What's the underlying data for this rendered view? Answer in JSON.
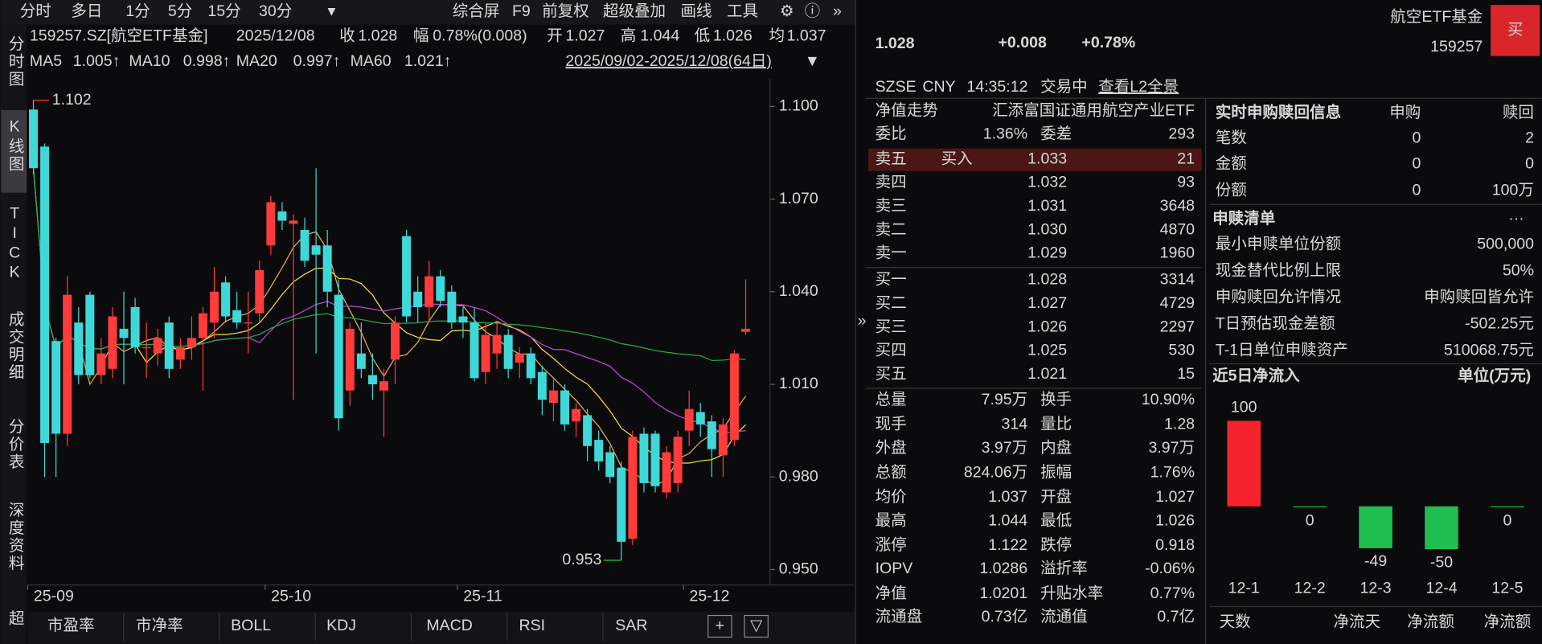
{
  "toolbar": {
    "periods": [
      "分时",
      "多日",
      "1分",
      "5分",
      "15分",
      "30分"
    ],
    "tools": [
      "综合屏",
      "F9",
      "前复权",
      "超级叠加",
      "画线",
      "工具"
    ]
  },
  "side_tabs": [
    "分时图",
    "K线图",
    "TICK",
    "成交明细",
    "分价表",
    "深度资料",
    "超"
  ],
  "chart_data": [
    {
      "type": "candlestick",
      "symbol": "159257.SZ[航空ETF基金]",
      "date": "2025/12/08",
      "quote_fields": [
        [
          "收",
          "1.028"
        ],
        [
          "幅",
          "0.78%(0.008)"
        ],
        [
          "开",
          "1.027"
        ],
        [
          "高",
          "1.044"
        ],
        [
          "低",
          "1.026"
        ],
        [
          "均",
          "1.037"
        ]
      ],
      "ma": [
        {
          "name": "MA5",
          "value_label": "1.005↑",
          "color": "#f0b050"
        },
        {
          "name": "MA10",
          "value_label": "0.998↑",
          "color": "#ffe033"
        },
        {
          "name": "MA20",
          "value_label": "0.997↑",
          "color": "#c04ad8"
        },
        {
          "name": "MA60",
          "value_label": "1.021↑",
          "color": "#2aa84a"
        }
      ],
      "range_label": "2025/09/02-2025/12/08(64日)",
      "categories": [
        "25-09",
        null,
        null,
        null,
        null,
        null,
        null,
        null,
        null,
        null,
        null,
        null,
        null,
        null,
        null,
        null,
        null,
        null,
        null,
        null,
        null,
        "25-10",
        null,
        null,
        null,
        null,
        null,
        null,
        null,
        null,
        null,
        null,
        null,
        null,
        null,
        null,
        null,
        null,
        "25-11",
        null,
        null,
        null,
        null,
        null,
        null,
        null,
        null,
        null,
        null,
        null,
        null,
        null,
        null,
        null,
        null,
        null,
        null,
        null,
        "25-12",
        null,
        null,
        null,
        null,
        null
      ],
      "candles": [
        [
          1.099,
          1.102,
          1.078,
          1.08
        ],
        [
          1.087,
          1.088,
          0.98,
          0.991
        ],
        [
          1.024,
          1.025,
          0.98,
          0.994
        ],
        [
          0.994,
          1.045,
          0.99,
          1.039
        ],
        [
          1.03,
          1.035,
          1.01,
          1.013
        ],
        [
          1.039,
          1.04,
          1.012,
          1.013
        ],
        [
          1.013,
          1.025,
          1.01,
          1.02
        ],
        [
          1.015,
          1.035,
          1.012,
          1.032
        ],
        [
          1.028,
          1.04,
          1.01,
          1.025
        ],
        [
          1.035,
          1.038,
          1.02,
          1.022
        ],
        [
          1.022,
          1.03,
          1.012,
          1.022
        ],
        [
          1.02,
          1.028,
          1.016,
          1.025
        ],
        [
          1.03,
          1.032,
          1.012,
          1.015
        ],
        [
          1.018,
          1.025,
          1.015,
          1.022
        ],
        [
          1.022,
          1.032,
          1.018,
          1.025
        ],
        [
          1.025,
          1.035,
          1.008,
          1.033
        ],
        [
          1.03,
          1.048,
          1.025,
          1.04
        ],
        [
          1.043,
          1.045,
          1.03,
          1.032
        ],
        [
          1.034,
          1.04,
          1.028,
          1.03
        ],
        [
          1.03,
          1.04,
          1.02,
          1.03
        ],
        [
          1.033,
          1.05,
          1.03,
          1.047
        ],
        [
          1.055,
          1.071,
          1.052,
          1.069
        ],
        [
          1.066,
          1.069,
          1.06,
          1.063
        ],
        [
          1.062,
          1.065,
          1.005,
          1.063
        ],
        [
          1.06,
          1.064,
          1.048,
          1.05
        ],
        [
          1.055,
          1.08,
          1.02,
          1.052
        ],
        [
          1.055,
          1.06,
          1.035,
          1.04
        ],
        [
          1.039,
          1.044,
          0.995,
          0.999
        ],
        [
          1.008,
          1.03,
          1.003,
          1.028
        ],
        [
          1.02,
          1.03,
          1.012,
          1.015
        ],
        [
          1.013,
          1.02,
          1.005,
          1.01
        ],
        [
          1.008,
          1.015,
          0.993,
          1.011
        ],
        [
          1.018,
          1.032,
          1.01,
          1.03
        ],
        [
          1.058,
          1.06,
          1.03,
          1.032
        ],
        [
          1.04,
          1.045,
          1.03,
          1.035
        ],
        [
          1.035,
          1.05,
          1.03,
          1.045
        ],
        [
          1.045,
          1.047,
          1.035,
          1.037
        ],
        [
          1.04,
          1.042,
          1.028,
          1.03
        ],
        [
          1.032,
          1.035,
          1.025,
          1.03
        ],
        [
          1.03,
          1.035,
          1.011,
          1.012
        ],
        [
          1.014,
          1.03,
          1.01,
          1.026
        ],
        [
          1.02,
          1.03,
          1.015,
          1.026
        ],
        [
          1.026,
          1.028,
          1.012,
          1.015
        ],
        [
          1.017,
          1.022,
          1.012,
          1.02
        ],
        [
          1.02,
          1.022,
          1.01,
          1.012
        ],
        [
          1.014,
          1.016,
          1.0,
          1.005
        ],
        [
          1.004,
          1.012,
          0.998,
          1.008
        ],
        [
          1.008,
          1.01,
          0.995,
          0.997
        ],
        [
          0.998,
          1.004,
          0.993,
          1.002
        ],
        [
          1.0,
          1.002,
          0.985,
          0.99
        ],
        [
          0.992,
          0.995,
          0.982,
          0.985
        ],
        [
          0.988,
          0.99,
          0.978,
          0.98
        ],
        [
          0.983,
          0.985,
          0.953,
          0.959
        ],
        [
          0.96,
          0.995,
          0.958,
          0.993
        ],
        [
          0.994,
          0.996,
          0.975,
          0.978
        ],
        [
          0.994,
          0.995,
          0.975,
          0.977
        ],
        [
          0.975,
          0.99,
          0.973,
          0.988
        ],
        [
          0.978,
          0.995,
          0.975,
          0.993
        ],
        [
          0.995,
          1.008,
          0.99,
          1.002
        ],
        [
          1.001,
          1.004,
          0.993,
          0.997
        ],
        [
          0.998,
          1.0,
          0.98,
          0.989
        ],
        [
          0.987,
          0.999,
          0.98,
          0.997
        ],
        [
          0.992,
          1.021,
          0.99,
          1.02
        ],
        [
          1.027,
          1.044,
          1.026,
          1.028
        ]
      ],
      "up_color": "#ff3b3b",
      "down_color": "#3fd8d8",
      "ylim": [
        0.945,
        1.109
      ],
      "yticks": [
        {
          "value": 1.1,
          "label": "1.100"
        },
        {
          "value": 1.07,
          "label": "1.070"
        },
        {
          "value": 1.04,
          "label": "1.040"
        },
        {
          "value": 1.01,
          "label": "1.010"
        },
        {
          "value": 0.98,
          "label": "0.980"
        },
        {
          "value": 0.95,
          "label": "0.950"
        }
      ],
      "high_label": "1.102",
      "low_label": "0.953"
    },
    {
      "type": "bar",
      "title": "近5日净流入",
      "unit": "单位(万元)",
      "categories": [
        "12-1",
        "12-2",
        "12-3",
        "12-4",
        "12-5"
      ],
      "values": [
        100,
        0,
        -49,
        -50,
        0
      ],
      "up_color": "#f5222d",
      "down_color": "#1fbf4f"
    }
  ],
  "bottom_tabs": [
    "市盈率",
    "市净率",
    "BOLL",
    "KDJ",
    "MACD",
    "RSI",
    "SAR"
  ],
  "quote": {
    "price": "1.028",
    "change": "+0.008",
    "change_pct": "+0.78%",
    "name": "航空ETF基金",
    "code": "159257",
    "buy": "买"
  },
  "status": [
    "SZSE",
    "CNY",
    "14:35:12",
    "交易中"
  ],
  "l2_link": "查看L2全景",
  "nav": [
    "净值走势",
    "汇添富国证通用航空产业ETF"
  ],
  "ratio": [
    "委比",
    "1.36%",
    "委差",
    "293"
  ],
  "order_book": [
    [
      "卖五",
      "1.033",
      "21"
    ],
    [
      "卖四",
      "1.032",
      "93"
    ],
    [
      "卖三",
      "1.031",
      "3648"
    ],
    [
      "卖二",
      "1.030",
      "4870"
    ],
    [
      "卖一",
      "1.029",
      "1960"
    ],
    [
      "买一",
      "1.028",
      "3314"
    ],
    [
      "买二",
      "1.027",
      "4729"
    ],
    [
      "买三",
      "1.026",
      "2297"
    ],
    [
      "买四",
      "1.025",
      "530"
    ],
    [
      "买五",
      "1.021",
      "15"
    ]
  ],
  "buy_hint": "买入",
  "stats": [
    [
      "总量",
      "7.95万",
      "换手",
      "10.90%"
    ],
    [
      "现手",
      "314",
      "量比",
      "1.28"
    ],
    [
      "外盘",
      "3.97万",
      "内盘",
      "3.97万"
    ],
    [
      "总额",
      "824.06万",
      "振幅",
      "1.76%"
    ],
    [
      "均价",
      "1.037",
      "开盘",
      "1.027"
    ],
    [
      "最高",
      "1.044",
      "最低",
      "1.026"
    ],
    [
      "涨停",
      "1.122",
      "跌停",
      "0.918"
    ],
    [
      "IOPV",
      "1.0286",
      "溢折率",
      "-0.06%"
    ],
    [
      "净值",
      "1.0201",
      "升贴水率",
      "0.77%"
    ],
    [
      "流通盘",
      "0.73亿",
      "流通值",
      "0.7亿"
    ]
  ],
  "stats_colors": [
    [
      "#e6e6e6",
      "#e6e6e6"
    ],
    [
      "#e6e6e6",
      "#e6e6e6"
    ],
    [
      "#ff3b3b",
      "#2ecc40"
    ],
    [
      "#e6e6e6",
      "#e6e6e6"
    ],
    [
      "#ff3b3b",
      "#ff3b3b"
    ],
    [
      "#ff3b3b",
      "#ff3b3b"
    ],
    [
      "#ff3b3b",
      "#2ecc40"
    ],
    [
      "#e6e6e6",
      "#2ecc40"
    ],
    [
      "#ff3b3b",
      "#ff3b3b"
    ],
    [
      "#e6e6e6",
      "#e6e6e6"
    ]
  ],
  "subscription": {
    "title": "实时申购赎回信息",
    "columns": [
      "申购",
      "赎回"
    ],
    "rows": [
      [
        "笔数",
        "0",
        "2"
      ],
      [
        "金额",
        "0",
        "0"
      ],
      [
        "份额",
        "0",
        "100万"
      ]
    ]
  },
  "list": {
    "title": "申赎清单",
    "more": "···",
    "rows": [
      [
        "最小申赎单位份额",
        "500,000"
      ],
      [
        "现金替代比例上限",
        "50%"
      ],
      [
        "申购赎回允许情况",
        "申购赎回皆允许"
      ],
      [
        "T日预估现金差额",
        "-502.25元"
      ],
      [
        "T-1日单位申赎资产",
        "510068.75元"
      ]
    ]
  },
  "flow_footer": [
    "天数",
    "净流天",
    "净流额",
    "净流额"
  ]
}
